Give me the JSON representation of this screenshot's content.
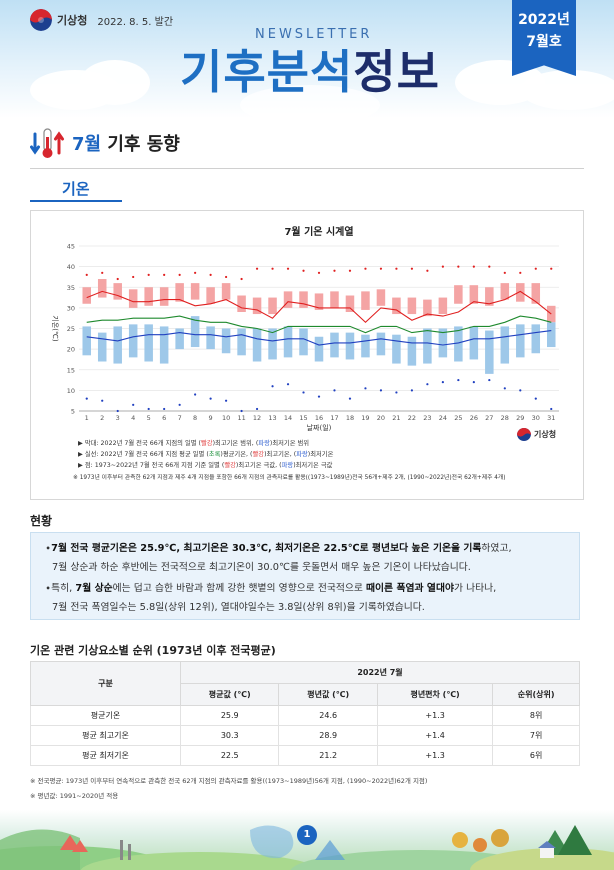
{
  "header": {
    "org": "기상청",
    "date": "2022. 8. 5. 발간",
    "newsletter": "NEWSLETTER",
    "title_part1": "기후분석",
    "title_part2": "정보",
    "issue_year": "2022년",
    "issue_month": "7월호"
  },
  "section": {
    "title_month": "7월",
    "title_rest": " 기후 동향",
    "subtab": "기온"
  },
  "chart_data": {
    "type": "line",
    "title": "7월 기온 시계열",
    "xlabel": "날짜(일)",
    "ylabel": "기온(℃)",
    "ylim": [
      5,
      45
    ],
    "yticks": [
      5,
      10,
      15,
      20,
      25,
      30,
      35,
      40,
      45
    ],
    "x": [
      1,
      2,
      3,
      4,
      5,
      6,
      7,
      8,
      9,
      10,
      11,
      12,
      13,
      14,
      15,
      16,
      17,
      18,
      19,
      20,
      21,
      22,
      23,
      24,
      25,
      26,
      27,
      28,
      29,
      30,
      31
    ],
    "normal_max_range": [
      [
        31,
        35
      ],
      [
        32.5,
        37
      ],
      [
        32,
        36
      ],
      [
        30,
        34.5
      ],
      [
        30.5,
        35
      ],
      [
        30.5,
        35
      ],
      [
        31.5,
        36
      ],
      [
        32,
        36
      ],
      [
        31,
        35
      ],
      [
        32,
        36
      ],
      [
        29,
        33
      ],
      [
        28.5,
        32.5
      ],
      [
        28.5,
        32.5
      ],
      [
        30,
        34
      ],
      [
        30,
        34
      ],
      [
        29.5,
        33.5
      ],
      [
        30,
        34
      ],
      [
        29,
        33
      ],
      [
        29.5,
        34
      ],
      [
        30.5,
        34.5
      ],
      [
        28.5,
        32.5
      ],
      [
        28.5,
        32.5
      ],
      [
        28,
        32
      ],
      [
        28.5,
        32.5
      ],
      [
        31,
        35.5
      ],
      [
        31,
        35.5
      ],
      [
        30.5,
        35
      ],
      [
        32,
        36
      ],
      [
        31.5,
        36
      ],
      [
        31,
        36
      ],
      [
        26.5,
        30.5
      ]
    ],
    "normal_min_range": [
      [
        18.5,
        25.5
      ],
      [
        17,
        24
      ],
      [
        16.5,
        25.5
      ],
      [
        18,
        26
      ],
      [
        17,
        26
      ],
      [
        16.5,
        25.5
      ],
      [
        20,
        25
      ],
      [
        20.5,
        28
      ],
      [
        20,
        25.5
      ],
      [
        19,
        25
      ],
      [
        18.5,
        25
      ],
      [
        17,
        25
      ],
      [
        17.5,
        25
      ],
      [
        18,
        25.5
      ],
      [
        18.5,
        25
      ],
      [
        17,
        23
      ],
      [
        18,
        24
      ],
      [
        17.5,
        24
      ],
      [
        18,
        23.5
      ],
      [
        18.5,
        24
      ],
      [
        16.5,
        23.5
      ],
      [
        16,
        23
      ],
      [
        16.5,
        25
      ],
      [
        18,
        25
      ],
      [
        17,
        25.5
      ],
      [
        17.5,
        25.5
      ],
      [
        14,
        24.5
      ],
      [
        16.5,
        25.5
      ],
      [
        18,
        26
      ],
      [
        19,
        26
      ],
      [
        20.5,
        26.5
      ]
    ],
    "series": [
      {
        "name": "최고기온",
        "values": [
          32.5,
          34,
          33,
          31.5,
          31.5,
          32,
          32,
          30.5,
          31,
          32,
          30,
          29.5,
          27.5,
          31.5,
          31,
          30,
          30,
          30,
          26.5,
          30,
          29.5,
          27,
          28.5,
          28,
          29,
          31.5,
          31,
          32,
          34,
          31.5,
          28.5
        ]
      },
      {
        "name": "평균기온",
        "values": [
          26.5,
          27,
          27,
          27.5,
          27.5,
          27.5,
          28,
          27,
          26.5,
          26.5,
          25.5,
          25,
          24,
          25.5,
          25.5,
          25.5,
          25.5,
          25.5,
          24,
          25.5,
          25.5,
          24,
          24.5,
          24,
          24.5,
          25.5,
          25.5,
          26.5,
          28,
          27.5,
          26.5
        ]
      },
      {
        "name": "최저기온",
        "values": [
          23,
          22.5,
          22,
          23,
          23.5,
          23.5,
          24,
          23.5,
          23.5,
          23,
          23.5,
          22.5,
          22,
          22.5,
          22.5,
          21,
          21.5,
          21.5,
          22,
          22.5,
          22,
          21.5,
          21.5,
          21,
          21.5,
          22.5,
          22.5,
          23,
          23.5,
          24,
          24.5
        ]
      }
    ],
    "extreme_high": [
      38,
      38.5,
      37,
      37.5,
      38,
      38,
      38,
      38.5,
      38,
      37.5,
      37,
      39.5,
      39.5,
      39.5,
      39,
      38.5,
      39,
      39,
      39.5,
      39.5,
      39.5,
      39.5,
      39,
      40,
      40,
      40,
      40,
      38.5,
      38.5,
      39.5,
      39.5
    ],
    "extreme_low": [
      8,
      7.5,
      5,
      6.5,
      5.5,
      5.5,
      6.5,
      9,
      8,
      7.5,
      5,
      5.5,
      11,
      11.5,
      9.5,
      8.5,
      10,
      8,
      10.5,
      10,
      9.5,
      10,
      11.5,
      12,
      12.5,
      12,
      12.5,
      10.5,
      10,
      8,
      5.5
    ]
  },
  "legend_notes": {
    "n1_a": "▶ 막대: 2022년 7월 전국 66개 지점의 일별 (",
    "n1_red": "빨강",
    "n1_b": ")최고기온 범위, (",
    "n1_blue": "파랑",
    "n1_c": ")최저기온 범위",
    "n2_a": "▶ 실선: 2022년 7월 전국 66개 지점 평균 일별 (",
    "n2_green": "초록",
    "n2_b": ")평균기온, (",
    "n2_red": "빨강",
    "n2_c": ")최고기온, (",
    "n2_blue": "파랑",
    "n2_d": ")최저기온",
    "n3_a": "▶ 점: 1973~2022년 7월 전국 66개 지점 기준 일별 (",
    "n3_red": "빨강",
    "n3_b": ")최고기온 극값, (",
    "n3_blue": "파랑",
    "n3_c": ")최저기온 극값",
    "n4": "※ 1973년 이후부터 관측한 62개 지점과 제주 4개 지점을 포함한 66개 지점의 관측자료를 활용((1973~1989년)전국 56개+제주 2개, (1990~2022년)전국 62개+제주 4개)"
  },
  "status": {
    "title": "현황",
    "p1_a": "∙",
    "p1_bold": "7월 전국 평균기온은 25.9℃, 최고기온은 30.3℃, 최저기온은 22.5℃로 평년보다 높은 기온을 기록",
    "p1_b": "하였고,",
    "p1_line2": "7월 상순과 하순 후반에는 전국적으로 최고기온이 30.0℃를 웃돌면서 매우 높은 기온이 나타났습니다.",
    "p2_a": "∙특히, ",
    "p2_bold1": "7월 상순",
    "p2_b": "에는 덥고 습한 바람과 함께 강한 햇볕의 영향으로 전국적으로 ",
    "p2_bold2": "때이른 폭염과 열대야",
    "p2_c": "가 나타나,",
    "p2_line2": "7월 전국 폭염일수는 5.8일(상위 12위), 열대야일수는 3.8일(상위 8위)을 기록하였습니다."
  },
  "table": {
    "title": "기온 관련 기상요소별 순위 (1973년 이후 전국평균)",
    "col_group": "구분",
    "period": "2022년 7월",
    "headers": [
      "평균값 (℃)",
      "평년값 (℃)",
      "평년편차 (℃)",
      "순위(상위)"
    ],
    "rows": [
      {
        "label": "평균기온",
        "cells": [
          "25.9",
          "24.6",
          "+1.3",
          "8위"
        ]
      },
      {
        "label": "평균 최고기온",
        "cells": [
          "30.3",
          "28.9",
          "+1.4",
          "7위"
        ]
      },
      {
        "label": "평균 최저기온",
        "cells": [
          "22.5",
          "21.2",
          "+1.3",
          "6위"
        ]
      }
    ],
    "note1": "※ 전국평균: 1973년 이후부터 연속적으로 관측한 전국 62개 지점의 관측자료를 활용((1973~1989년)56개 지점, (1990~2022년)62개 지점)",
    "note2": "※ 평년값: 1991~2020년 적용"
  },
  "footer": {
    "page": "1"
  },
  "colors": {
    "brand_blue": "#1b64c0",
    "max_bar": "#f4a4a4",
    "min_bar": "#9ec8e9",
    "max_line": "#e02020",
    "mean_line": "#1f8a2e",
    "min_line": "#2040c0"
  }
}
